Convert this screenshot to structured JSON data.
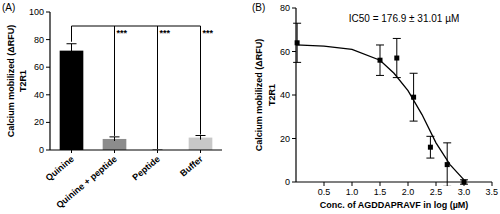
{
  "chart_data": [
    {
      "type": "bar",
      "panel": "(A)",
      "ylabel": [
        "Calcium mobilized (ΔRFU)",
        "T2R1"
      ],
      "categories": [
        "Quinine",
        "Quinine + peptide",
        "Peptide",
        "Buffer"
      ],
      "values": [
        72,
        8,
        0,
        9
      ],
      "errors": [
        5,
        1.5,
        0,
        1.5
      ],
      "colors": [
        "#000000",
        "#8c8c8c",
        "#5a5a5a",
        "#c8c8c8"
      ],
      "significance": [
        null,
        "***",
        "***",
        "***"
      ],
      "ylim": [
        0,
        100
      ],
      "yticks": [
        0,
        20,
        40,
        60,
        80,
        100
      ]
    },
    {
      "type": "scatter",
      "panel": "(B)",
      "title": "IC50 = 176.9 ± 31.01 µM",
      "ylabel": [
        "Calcium mobilized (ΔRFU)",
        "T2R1"
      ],
      "xlabel": "Conc. of AGDDAPRAVF in log (µM)",
      "xlim": [
        0,
        3.5
      ],
      "xticks": [
        {
          "value": 0.5,
          "label": "0.5"
        },
        {
          "value": 1,
          "label": "1.0"
        },
        {
          "value": 1.5,
          "label": "1.5"
        },
        {
          "value": 2,
          "label": "2.0"
        },
        {
          "value": 2.5,
          "label": "2.5"
        },
        {
          "value": 3,
          "label": "3.0"
        },
        {
          "value": 3.5,
          "label": "3.5"
        }
      ],
      "ylim": [
        0,
        80
      ],
      "yticks": [
        0,
        20,
        40,
        60,
        80
      ],
      "series": [
        {
          "type": "scatter",
          "marker": "square",
          "color": "#000000",
          "x": [
            0.02,
            1.5,
            1.8,
            2.1,
            2.4,
            2.7,
            3.0
          ],
          "values": [
            64,
            56,
            57,
            39,
            16,
            8,
            0
          ],
          "errors": [
            9,
            7,
            9,
            11,
            5,
            10,
            1
          ]
        },
        {
          "type": "line",
          "color": "#000000",
          "x": [
            0,
            0.5,
            1,
            1.5,
            1.75,
            2,
            2.25,
            2.5,
            2.75,
            3
          ],
          "values": [
            63,
            62.5,
            61,
            56,
            50,
            42,
            31,
            18,
            8,
            1
          ]
        }
      ]
    }
  ]
}
